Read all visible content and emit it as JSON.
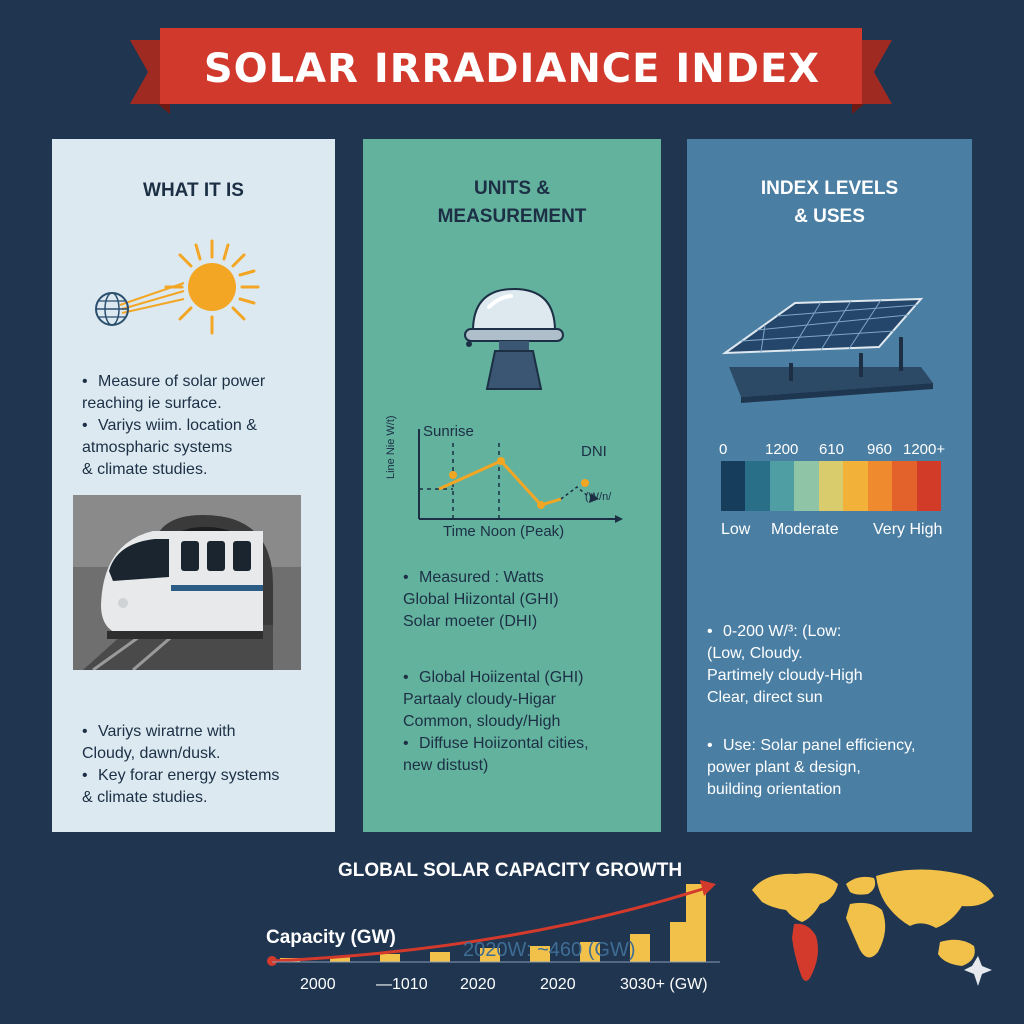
{
  "banner": {
    "title": "SOLAR IRRADIANCE INDEX"
  },
  "panels": {
    "what": {
      "title": "WHAT IT IS",
      "bullets_top": [
        {
          "text": "Measure of solar power",
          "bullet": true
        },
        {
          "text": "reaching ie surface.",
          "bullet": false
        },
        {
          "text": "Variys wiim. location &",
          "bullet": true
        },
        {
          "text": "atmospharic systems",
          "bullet": false
        },
        {
          "text": "& climate studies.",
          "bullet": false
        }
      ],
      "bullets_bottom": [
        {
          "text": "Variys wiratrne with",
          "bullet": true
        },
        {
          "text": "Cloudy, dawn/dusk.",
          "bullet": false
        },
        {
          "text": "Key forar energy systems",
          "bullet": true
        },
        {
          "text": "& climate studies.",
          "bullet": false
        }
      ]
    },
    "units": {
      "title_line1": "UNITS &",
      "title_line2": "MEASUREMENT",
      "chart": {
        "ylabel": "Line Nie W/t)",
        "label_sunrise": "Sunrise",
        "label_dni": "DNI",
        "label_unit": "(W/n/",
        "xlabel": "Time Noon (Peak)"
      },
      "bullets_mid": [
        {
          "text": "Measured : Watts",
          "bullet": true
        },
        {
          "text": "Global Hiizontal (GHI)",
          "bullet": false
        },
        {
          "text": "Solar moeter (DHI)",
          "bullet": false
        }
      ],
      "bullets_bottom": [
        {
          "text": "Global Hoiizental (GHI)",
          "bullet": true
        },
        {
          "text": "Partaaly cloudy-Higar",
          "bullet": false
        },
        {
          "text": "Common, sloudy/High",
          "bullet": false
        },
        {
          "text": "Diffuse Hoiizontal cities,",
          "bullet": true
        },
        {
          "text": "new distust)",
          "bullet": false
        }
      ]
    },
    "levels": {
      "title_line1": "INDEX LEVELS",
      "title_line2": "& USES",
      "scale_ticks": [
        "0",
        "1200",
        "610",
        "960",
        "1200+"
      ],
      "scale_colors": [
        "#173d5c",
        "#2a6f88",
        "#4f9ea3",
        "#8fc5a6",
        "#d8cc6c",
        "#f2b23a",
        "#ef8a2e",
        "#e3622c",
        "#d23b28"
      ],
      "scale_captions": [
        "Low",
        "Moderate",
        "Very High"
      ],
      "bullets_mid": [
        {
          "text": "0-200 W/³: (Low:",
          "bullet": true
        },
        {
          "text": "(Low, Cloudy.",
          "bullet": false
        },
        {
          "text": "Partimely cloudy-High",
          "bullet": false
        },
        {
          "text": "Clear, direct sun",
          "bullet": false
        }
      ],
      "bullets_bottom": [
        {
          "text": "Use: Solar panel efficiency,",
          "bullet": true
        },
        {
          "text": "power plant & design,",
          "bullet": false
        },
        {
          "text": "building orientation",
          "bullet": false
        }
      ]
    }
  },
  "growth": {
    "title": "GLOBAL SOLAR CAPACITY GROWTH",
    "ylabel": "Capacity (GW)",
    "annotation": "2020W: ~460 (GW)",
    "x_ticks": [
      "2000",
      "—1010",
      "2020",
      "2020",
      "3030+ (GW)"
    ],
    "bar_color": "#f2c14a",
    "arrow_color": "#d43a2c"
  }
}
